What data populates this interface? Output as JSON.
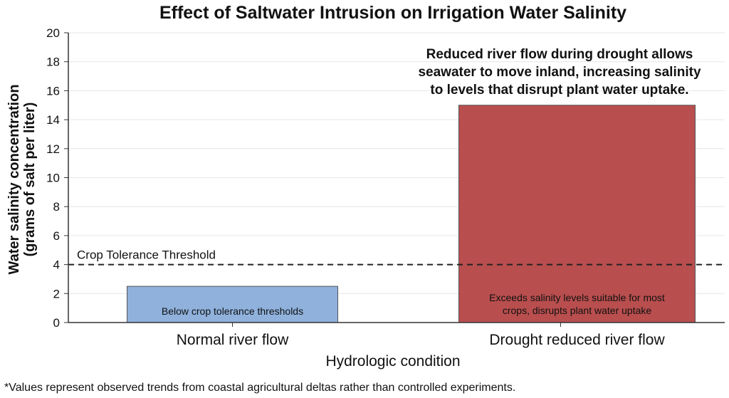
{
  "chart_data": {
    "type": "bar",
    "title": "Effect of Saltwater Intrusion on Irrigation Water Salinity",
    "xlabel": "Hydrologic condition",
    "ylabel": [
      "Water salinity concentration",
      "(grams of salt per liter)"
    ],
    "ylim": [
      0,
      20
    ],
    "yticks": [
      0,
      2,
      4,
      6,
      8,
      10,
      12,
      14,
      16,
      18,
      20
    ],
    "categories": [
      "Normal river flow",
      "Drought reduced river flow"
    ],
    "values": [
      2.5,
      15
    ],
    "bar_colors": [
      "#8fb1dc",
      "#b94e4e"
    ],
    "bar_labels": [
      [
        "Below crop tolerance thresholds"
      ],
      [
        "Exceeds salinity levels suitable for most",
        "crops, disrupts plant water uptake"
      ]
    ],
    "threshold": {
      "value": 4,
      "label": "Crop Tolerance Threshold"
    },
    "annotation": [
      "Reduced river flow during drought allows",
      "seawater to move inland, increasing salinity",
      "to levels that disrupt plant water uptake."
    ],
    "footnote": "*Values represent observed trends from coastal agricultural deltas rather than controlled experiments."
  }
}
